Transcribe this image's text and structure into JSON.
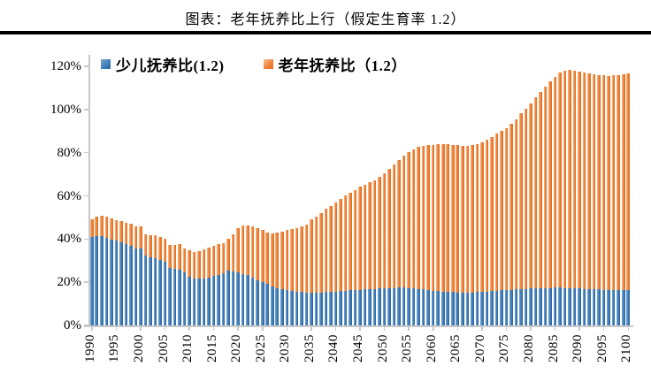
{
  "header": {
    "title": "图表：老年抚养比上行（假定生育率 1.2）"
  },
  "colors": {
    "child_blue": "#3E7CBD",
    "old_orange": "#ED7D31",
    "axis_gray": "#C9C9C9",
    "title_rule_black": "#000000"
  },
  "chart_data": {
    "type": "bar",
    "stacked": true,
    "title": "图表：老年抚养比上行（假定生育率 1.2）",
    "xlabel": "",
    "ylabel": "",
    "ylim_percent": [
      0,
      120
    ],
    "grid": false,
    "legend_position": "top-left-inside",
    "y_ticks": [
      "0%",
      "20%",
      "40%",
      "60%",
      "80%",
      "100%",
      "120%"
    ],
    "x_tick_years": [
      1990,
      1995,
      2000,
      2005,
      2010,
      2015,
      2020,
      2025,
      2030,
      2035,
      2040,
      2045,
      2050,
      2055,
      2060,
      2065,
      2070,
      2075,
      2080,
      2085,
      2090,
      2095,
      2100
    ],
    "x": [
      1990,
      1991,
      1992,
      1993,
      1994,
      1995,
      1996,
      1997,
      1998,
      1999,
      2000,
      2001,
      2002,
      2003,
      2004,
      2005,
      2006,
      2007,
      2008,
      2009,
      2010,
      2011,
      2012,
      2013,
      2014,
      2015,
      2016,
      2017,
      2018,
      2019,
      2020,
      2021,
      2022,
      2023,
      2024,
      2025,
      2026,
      2027,
      2028,
      2029,
      2030,
      2031,
      2032,
      2033,
      2034,
      2035,
      2036,
      2037,
      2038,
      2039,
      2040,
      2041,
      2042,
      2043,
      2044,
      2045,
      2046,
      2047,
      2048,
      2049,
      2050,
      2051,
      2052,
      2053,
      2054,
      2055,
      2056,
      2057,
      2058,
      2059,
      2060,
      2061,
      2062,
      2063,
      2064,
      2065,
      2066,
      2067,
      2068,
      2069,
      2070,
      2071,
      2072,
      2073,
      2074,
      2075,
      2076,
      2077,
      2078,
      2079,
      2080,
      2081,
      2082,
      2083,
      2084,
      2085,
      2086,
      2087,
      2088,
      2089,
      2090,
      2091,
      2092,
      2093,
      2094,
      2095,
      2096,
      2097,
      2098,
      2099,
      2100
    ],
    "series": [
      {
        "name": "少儿抚养比(1.2)",
        "color": "#3E7CBD",
        "values": [
          41.0,
          41.3,
          41.2,
          40.6,
          39.8,
          39.2,
          38.4,
          37.5,
          36.8,
          35.8,
          35.5,
          32.2,
          31.4,
          31.2,
          30.4,
          29.6,
          26.8,
          26.3,
          25.8,
          24.6,
          22.5,
          21.8,
          21.8,
          21.9,
          22.3,
          22.8,
          23.3,
          24.2,
          25.4,
          25.1,
          24.7,
          23.9,
          23.2,
          22.3,
          21.1,
          20.1,
          19.1,
          18.2,
          17.4,
          16.8,
          16.4,
          16.0,
          15.7,
          15.5,
          15.3,
          15.2,
          15.2,
          15.3,
          15.4,
          15.5,
          15.7,
          15.9,
          16.1,
          16.3,
          16.5,
          16.6,
          16.8,
          16.9,
          17.0,
          17.1,
          17.2,
          17.3,
          17.4,
          17.5,
          17.5,
          17.4,
          17.2,
          17.0,
          16.7,
          16.4,
          16.1,
          15.9,
          15.7,
          15.5,
          15.4,
          15.3,
          15.2,
          15.2,
          15.3,
          15.4,
          15.5,
          15.6,
          15.8,
          16.0,
          16.2,
          16.4,
          16.5,
          16.7,
          16.8,
          17.0,
          17.1,
          17.2,
          17.3,
          17.4,
          17.4,
          17.5,
          17.5,
          17.4,
          17.3,
          17.2,
          17.1,
          17.0,
          16.9,
          16.8,
          16.7,
          16.6,
          16.5,
          16.4,
          16.4,
          16.3,
          16.2
        ]
      },
      {
        "name": "老年抚养比（1.2）",
        "color": "#ED7D31",
        "values": [
          8.3,
          9.2,
          9.6,
          9.9,
          9.8,
          9.6,
          9.8,
          10.0,
          10.3,
          10.2,
          10.5,
          10.1,
          10.2,
          10.4,
          10.6,
          10.7,
          10.7,
          10.8,
          11.7,
          11.2,
          12.3,
          12.1,
          12.6,
          13.3,
          13.9,
          14.1,
          14.2,
          14.0,
          14.9,
          16.9,
          20.4,
          22.3,
          23.2,
          23.7,
          24.0,
          24.0,
          23.9,
          24.5,
          25.6,
          26.7,
          27.7,
          28.6,
          29.4,
          30.4,
          31.5,
          34.0,
          35.3,
          36.6,
          38.5,
          39.8,
          41.3,
          42.8,
          44.0,
          45.2,
          46.3,
          47.6,
          48.4,
          49.3,
          50.3,
          51.6,
          53.1,
          55.1,
          57.0,
          59.0,
          61.0,
          62.9,
          64.4,
          65.6,
          66.6,
          67.2,
          67.6,
          68.1,
          68.3,
          68.5,
          68.3,
          68.3,
          68.1,
          68.1,
          68.3,
          68.6,
          69.2,
          70.5,
          71.4,
          72.7,
          74.0,
          75.1,
          77.0,
          78.9,
          81.6,
          83.5,
          85.9,
          88.3,
          90.7,
          93.1,
          95.6,
          97.5,
          99.5,
          100.6,
          101.0,
          100.8,
          100.4,
          100.0,
          99.7,
          99.5,
          99.3,
          99.2,
          99.2,
          99.4,
          99.6,
          100.0,
          100.4
        ]
      }
    ]
  }
}
